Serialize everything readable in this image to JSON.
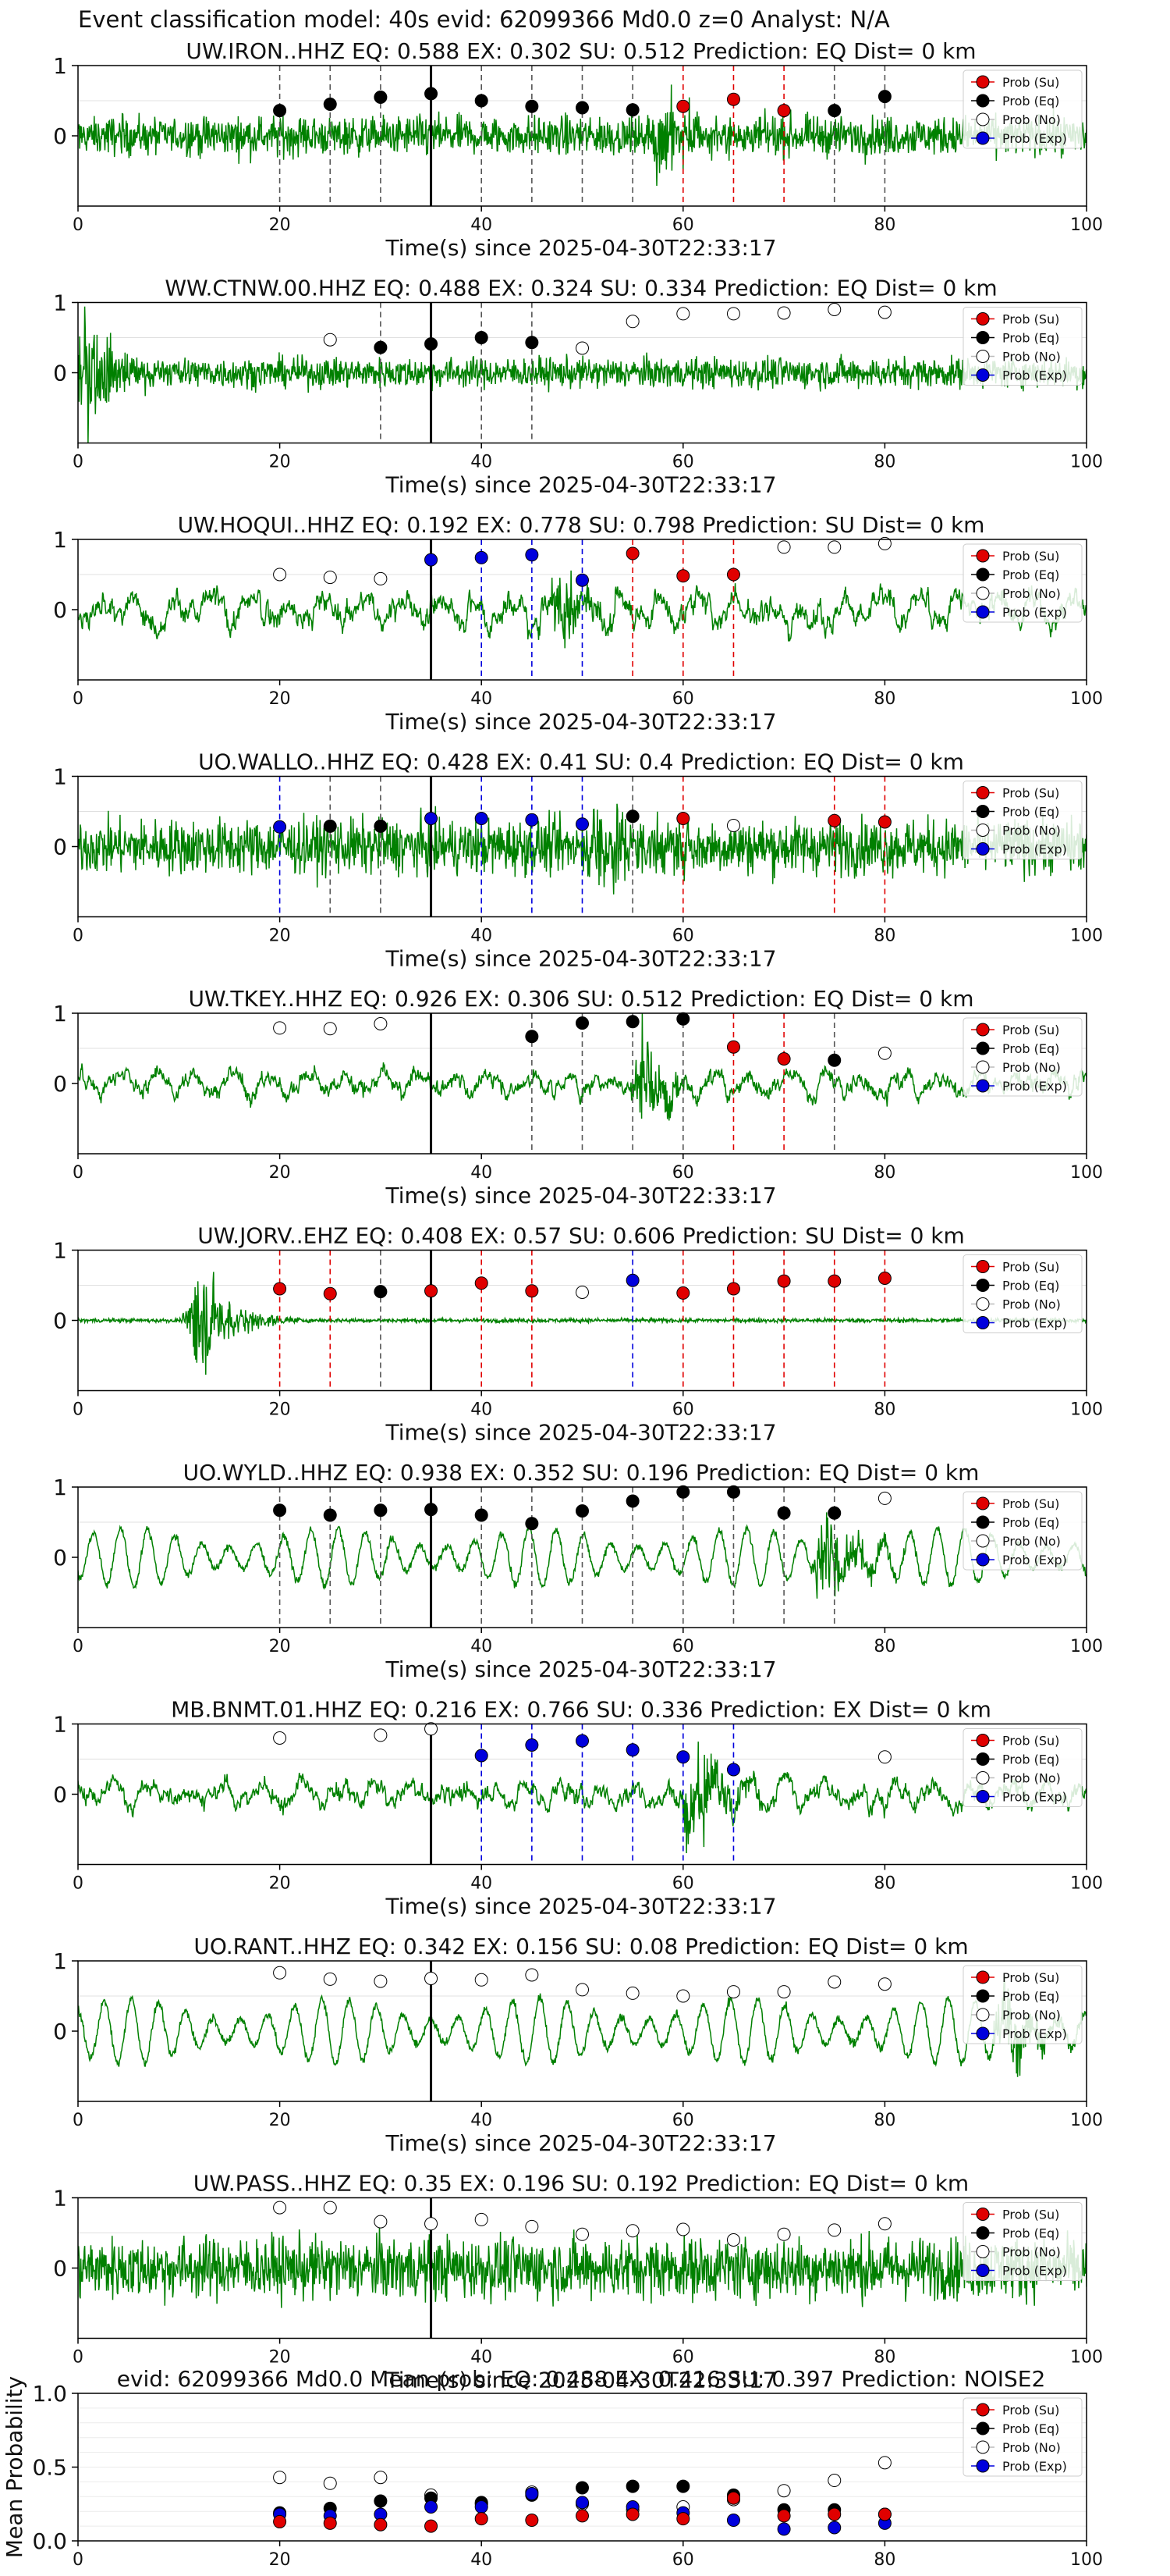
{
  "figure": {
    "suptitle": "Event classification model: 40s evid: 62099366 Md0.0 z=0 Analyst: N/A"
  },
  "colors": {
    "waveform": "#008000",
    "su": "#e00000",
    "eq": "#000000",
    "no": "#ffffff",
    "exp": "#0000dd",
    "pick_line": "#000000"
  },
  "legend_labels": [
    "Prob (Su)",
    "Prob (Eq)",
    "Prob (No)",
    "Prob (Exp)"
  ],
  "chart_data": [
    {
      "type": "line",
      "title": "UW.IRON..HHZ   EQ: 0.588  EX: 0.302  SU: 0.512   Prediction: EQ    Dist= 0 km",
      "xlabel": "Time(s) since 2025-04-30T22:33:17",
      "xlim": [
        0,
        100
      ],
      "ylim": [
        -1,
        1
      ],
      "xticks": [
        0,
        20,
        40,
        60,
        80,
        100
      ],
      "yticks": [
        0,
        1
      ],
      "pick_time": 35,
      "legend": "top-right",
      "wave": {
        "style": "noisy",
        "amp": 0.28,
        "events": [
          {
            "t": 58,
            "amp": 0.7
          }
        ]
      },
      "points": [
        {
          "x": 20,
          "y": 0.36,
          "class": "eq"
        },
        {
          "x": 25,
          "y": 0.45,
          "class": "eq"
        },
        {
          "x": 30,
          "y": 0.55,
          "class": "eq"
        },
        {
          "x": 35,
          "y": 0.6,
          "class": "eq"
        },
        {
          "x": 40,
          "y": 0.5,
          "class": "eq"
        },
        {
          "x": 45,
          "y": 0.42,
          "class": "eq"
        },
        {
          "x": 50,
          "y": 0.4,
          "class": "eq"
        },
        {
          "x": 55,
          "y": 0.37,
          "class": "eq"
        },
        {
          "x": 60,
          "y": 0.42,
          "class": "su"
        },
        {
          "x": 65,
          "y": 0.52,
          "class": "su"
        },
        {
          "x": 70,
          "y": 0.36,
          "class": "su"
        },
        {
          "x": 75,
          "y": 0.36,
          "class": "eq"
        },
        {
          "x": 80,
          "y": 0.56,
          "class": "eq"
        }
      ]
    },
    {
      "type": "line",
      "title": "WW.CTNW.00.HHZ   EQ: 0.488  EX: 0.324  SU: 0.334   Prediction: EQ    Dist= 0 km",
      "xlabel": "Time(s) since 2025-04-30T22:33:17",
      "xlim": [
        0,
        100
      ],
      "ylim": [
        -1,
        1
      ],
      "xticks": [
        0,
        20,
        40,
        60,
        80,
        100
      ],
      "yticks": [
        0,
        1
      ],
      "pick_time": 35,
      "legend": "top-right",
      "wave": {
        "style": "noisy",
        "amp": 0.22,
        "events": [
          {
            "t": 1,
            "amp": 0.9
          }
        ]
      },
      "points": [
        {
          "x": 25,
          "y": 0.47,
          "class": "no"
        },
        {
          "x": 30,
          "y": 0.36,
          "class": "eq"
        },
        {
          "x": 35,
          "y": 0.41,
          "class": "eq"
        },
        {
          "x": 40,
          "y": 0.5,
          "class": "eq"
        },
        {
          "x": 45,
          "y": 0.43,
          "class": "eq"
        },
        {
          "x": 50,
          "y": 0.35,
          "class": "no"
        },
        {
          "x": 55,
          "y": 0.73,
          "class": "no"
        },
        {
          "x": 60,
          "y": 0.84,
          "class": "no"
        },
        {
          "x": 65,
          "y": 0.84,
          "class": "no"
        },
        {
          "x": 70,
          "y": 0.85,
          "class": "no"
        },
        {
          "x": 75,
          "y": 0.9,
          "class": "no"
        },
        {
          "x": 80,
          "y": 0.86,
          "class": "no"
        }
      ]
    },
    {
      "type": "line",
      "title": "UW.HOQUI..HHZ   EQ: 0.192  EX: 0.778  SU: 0.798   Prediction: SU    Dist= 0 km",
      "xlabel": "Time(s) since 2025-04-30T22:33:17",
      "xlim": [
        0,
        100
      ],
      "ylim": [
        -1,
        1
      ],
      "xticks": [
        0,
        20,
        40,
        60,
        80,
        100
      ],
      "yticks": [
        0,
        1
      ],
      "pick_time": 35,
      "legend": "top-right",
      "wave": {
        "style": "lowfreq",
        "amp": 0.4,
        "events": [
          {
            "t": 48,
            "amp": 0.5
          }
        ]
      },
      "points": [
        {
          "x": 20,
          "y": 0.5,
          "class": "no"
        },
        {
          "x": 25,
          "y": 0.46,
          "class": "no"
        },
        {
          "x": 30,
          "y": 0.44,
          "class": "no"
        },
        {
          "x": 35,
          "y": 0.71,
          "class": "exp"
        },
        {
          "x": 40,
          "y": 0.74,
          "class": "exp"
        },
        {
          "x": 45,
          "y": 0.78,
          "class": "exp"
        },
        {
          "x": 50,
          "y": 0.42,
          "class": "exp"
        },
        {
          "x": 55,
          "y": 0.8,
          "class": "su"
        },
        {
          "x": 60,
          "y": 0.48,
          "class": "su"
        },
        {
          "x": 65,
          "y": 0.5,
          "class": "su"
        },
        {
          "x": 70,
          "y": 0.89,
          "class": "no"
        },
        {
          "x": 75,
          "y": 0.89,
          "class": "no"
        },
        {
          "x": 80,
          "y": 0.94,
          "class": "no"
        }
      ]
    },
    {
      "type": "line",
      "title": "UO.WALLO..HHZ   EQ: 0.428  EX: 0.41  SU: 0.4   Prediction: EQ    Dist= 0 km",
      "xlabel": "Time(s) since 2025-04-30T22:33:17",
      "xlim": [
        0,
        100
      ],
      "ylim": [
        -1,
        1
      ],
      "xticks": [
        0,
        20,
        40,
        60,
        80,
        100
      ],
      "yticks": [
        0,
        1
      ],
      "pick_time": 35,
      "legend": "top-right",
      "wave": {
        "style": "noisy",
        "amp": 0.4,
        "events": [
          {
            "t": 52,
            "amp": 0.8
          }
        ]
      },
      "points": [
        {
          "x": 20,
          "y": 0.28,
          "class": "exp"
        },
        {
          "x": 25,
          "y": 0.29,
          "class": "eq"
        },
        {
          "x": 30,
          "y": 0.29,
          "class": "eq"
        },
        {
          "x": 35,
          "y": 0.4,
          "class": "exp"
        },
        {
          "x": 40,
          "y": 0.4,
          "class": "exp"
        },
        {
          "x": 45,
          "y": 0.38,
          "class": "exp"
        },
        {
          "x": 50,
          "y": 0.32,
          "class": "exp"
        },
        {
          "x": 55,
          "y": 0.43,
          "class": "eq"
        },
        {
          "x": 60,
          "y": 0.4,
          "class": "su"
        },
        {
          "x": 65,
          "y": 0.3,
          "class": "no"
        },
        {
          "x": 75,
          "y": 0.37,
          "class": "su"
        },
        {
          "x": 80,
          "y": 0.35,
          "class": "su"
        }
      ]
    },
    {
      "type": "line",
      "title": "UW.TKEY..HHZ   EQ: 0.926  EX: 0.306  SU: 0.512   Prediction: EQ    Dist= 0 km",
      "xlabel": "Time(s) since 2025-04-30T22:33:17",
      "xlim": [
        0,
        100
      ],
      "ylim": [
        -1,
        1
      ],
      "xticks": [
        0,
        20,
        40,
        60,
        80,
        100
      ],
      "yticks": [
        0,
        1
      ],
      "pick_time": 35,
      "legend": "top-right",
      "wave": {
        "style": "lowfreq",
        "amp": 0.28,
        "events": [
          {
            "t": 56,
            "amp": 0.6
          }
        ]
      },
      "points": [
        {
          "x": 20,
          "y": 0.79,
          "class": "no"
        },
        {
          "x": 25,
          "y": 0.78,
          "class": "no"
        },
        {
          "x": 30,
          "y": 0.85,
          "class": "no"
        },
        {
          "x": 45,
          "y": 0.67,
          "class": "eq"
        },
        {
          "x": 50,
          "y": 0.86,
          "class": "eq"
        },
        {
          "x": 55,
          "y": 0.88,
          "class": "eq"
        },
        {
          "x": 60,
          "y": 0.92,
          "class": "eq"
        },
        {
          "x": 65,
          "y": 0.52,
          "class": "su"
        },
        {
          "x": 70,
          "y": 0.35,
          "class": "su"
        },
        {
          "x": 75,
          "y": 0.33,
          "class": "eq"
        },
        {
          "x": 80,
          "y": 0.43,
          "class": "no"
        }
      ]
    },
    {
      "type": "line",
      "title": "UW.JORV..EHZ   EQ: 0.408  EX: 0.57  SU: 0.606   Prediction: SU    Dist= 0 km",
      "xlabel": "Time(s) since 2025-04-30T22:33:17",
      "xlim": [
        0,
        100
      ],
      "ylim": [
        -1,
        1
      ],
      "xticks": [
        0,
        20,
        40,
        60,
        80,
        100
      ],
      "yticks": [
        0,
        1
      ],
      "pick_time": 35,
      "legend": "top-right",
      "wave": {
        "style": "quiet",
        "amp": 0.03,
        "events": [
          {
            "t": 12,
            "amp": 0.9
          }
        ]
      },
      "points": [
        {
          "x": 20,
          "y": 0.45,
          "class": "su"
        },
        {
          "x": 25,
          "y": 0.38,
          "class": "su"
        },
        {
          "x": 30,
          "y": 0.41,
          "class": "eq"
        },
        {
          "x": 35,
          "y": 0.42,
          "class": "su"
        },
        {
          "x": 40,
          "y": 0.53,
          "class": "su"
        },
        {
          "x": 45,
          "y": 0.42,
          "class": "su"
        },
        {
          "x": 50,
          "y": 0.4,
          "class": "no"
        },
        {
          "x": 55,
          "y": 0.57,
          "class": "exp"
        },
        {
          "x": 60,
          "y": 0.39,
          "class": "su"
        },
        {
          "x": 65,
          "y": 0.45,
          "class": "su"
        },
        {
          "x": 70,
          "y": 0.56,
          "class": "su"
        },
        {
          "x": 75,
          "y": 0.56,
          "class": "su"
        },
        {
          "x": 80,
          "y": 0.6,
          "class": "su"
        }
      ]
    },
    {
      "type": "line",
      "title": "UO.WYLD..HHZ   EQ: 0.938  EX: 0.352  SU: 0.196   Prediction: EQ    Dist= 0 km",
      "xlabel": "Time(s) since 2025-04-30T22:33:17",
      "xlim": [
        0,
        100
      ],
      "ylim": [
        -1,
        1
      ],
      "xticks": [
        0,
        20,
        40,
        60,
        80,
        100
      ],
      "yticks": [
        0,
        1
      ],
      "pick_time": 35,
      "legend": "top-right",
      "wave": {
        "style": "wavy",
        "amp": 0.38,
        "events": [
          {
            "t": 74,
            "amp": 0.8
          }
        ]
      },
      "points": [
        {
          "x": 20,
          "y": 0.67,
          "class": "eq"
        },
        {
          "x": 25,
          "y": 0.6,
          "class": "eq"
        },
        {
          "x": 30,
          "y": 0.67,
          "class": "eq"
        },
        {
          "x": 35,
          "y": 0.68,
          "class": "eq"
        },
        {
          "x": 40,
          "y": 0.6,
          "class": "eq"
        },
        {
          "x": 45,
          "y": 0.48,
          "class": "eq"
        },
        {
          "x": 50,
          "y": 0.66,
          "class": "eq"
        },
        {
          "x": 55,
          "y": 0.8,
          "class": "eq"
        },
        {
          "x": 60,
          "y": 0.93,
          "class": "eq"
        },
        {
          "x": 65,
          "y": 0.93,
          "class": "eq"
        },
        {
          "x": 70,
          "y": 0.63,
          "class": "eq"
        },
        {
          "x": 75,
          "y": 0.63,
          "class": "eq"
        },
        {
          "x": 80,
          "y": 0.84,
          "class": "no"
        }
      ]
    },
    {
      "type": "line",
      "title": "MB.BNMT.01.HHZ   EQ: 0.216  EX: 0.766  SU: 0.336   Prediction: EX    Dist= 0 km",
      "xlabel": "Time(s) since 2025-04-30T22:33:17",
      "xlim": [
        0,
        100
      ],
      "ylim": [
        -1,
        1
      ],
      "xticks": [
        0,
        20,
        40,
        60,
        80,
        100
      ],
      "yticks": [
        0,
        1
      ],
      "pick_time": 35,
      "legend": "top-right",
      "wave": {
        "style": "lowfreq",
        "amp": 0.3,
        "events": [
          {
            "t": 61,
            "amp": 0.85
          }
        ]
      },
      "points": [
        {
          "x": 20,
          "y": 0.8,
          "class": "no"
        },
        {
          "x": 30,
          "y": 0.84,
          "class": "no"
        },
        {
          "x": 35,
          "y": 0.93,
          "class": "no"
        },
        {
          "x": 40,
          "y": 0.55,
          "class": "exp"
        },
        {
          "x": 45,
          "y": 0.7,
          "class": "exp"
        },
        {
          "x": 50,
          "y": 0.76,
          "class": "exp"
        },
        {
          "x": 55,
          "y": 0.63,
          "class": "exp"
        },
        {
          "x": 60,
          "y": 0.53,
          "class": "exp"
        },
        {
          "x": 65,
          "y": 0.35,
          "class": "exp"
        },
        {
          "x": 80,
          "y": 0.53,
          "class": "no"
        }
      ]
    },
    {
      "type": "line",
      "title": "UO.RANT..HHZ   EQ: 0.342  EX: 0.156  SU: 0.08   Prediction: EQ    Dist= 0 km",
      "xlabel": "Time(s) since 2025-04-30T22:33:17",
      "xlim": [
        0,
        100
      ],
      "ylim": [
        -1,
        1
      ],
      "xticks": [
        0,
        20,
        40,
        60,
        80,
        100
      ],
      "yticks": [
        0,
        1
      ],
      "pick_time": 35,
      "legend": "top-right",
      "wave": {
        "style": "wavy",
        "amp": 0.42,
        "events": [
          {
            "t": 92,
            "amp": 0.7
          }
        ]
      },
      "points": [
        {
          "x": 20,
          "y": 0.83,
          "class": "no"
        },
        {
          "x": 25,
          "y": 0.74,
          "class": "no"
        },
        {
          "x": 30,
          "y": 0.71,
          "class": "no"
        },
        {
          "x": 35,
          "y": 0.75,
          "class": "no"
        },
        {
          "x": 40,
          "y": 0.73,
          "class": "no"
        },
        {
          "x": 45,
          "y": 0.8,
          "class": "no"
        },
        {
          "x": 50,
          "y": 0.59,
          "class": "no"
        },
        {
          "x": 55,
          "y": 0.54,
          "class": "no"
        },
        {
          "x": 60,
          "y": 0.5,
          "class": "no"
        },
        {
          "x": 65,
          "y": 0.56,
          "class": "no"
        },
        {
          "x": 70,
          "y": 0.56,
          "class": "no"
        },
        {
          "x": 75,
          "y": 0.7,
          "class": "no"
        },
        {
          "x": 80,
          "y": 0.67,
          "class": "no"
        }
      ]
    },
    {
      "type": "line",
      "title": "UW.PASS..HHZ   EQ: 0.35  EX: 0.196  SU: 0.192   Prediction: EQ    Dist= 0 km",
      "xlabel": "Time(s) since 2025-04-30T22:33:17",
      "xlim": [
        0,
        100
      ],
      "ylim": [
        -1,
        1
      ],
      "xticks": [
        0,
        20,
        40,
        60,
        80,
        100
      ],
      "yticks": [
        0,
        1
      ],
      "pick_time": 35,
      "legend": "top-right",
      "wave": {
        "style": "noisy",
        "amp": 0.45,
        "events": []
      },
      "points": [
        {
          "x": 20,
          "y": 0.86,
          "class": "no"
        },
        {
          "x": 25,
          "y": 0.86,
          "class": "no"
        },
        {
          "x": 30,
          "y": 0.66,
          "class": "no"
        },
        {
          "x": 35,
          "y": 0.63,
          "class": "no"
        },
        {
          "x": 40,
          "y": 0.69,
          "class": "no"
        },
        {
          "x": 45,
          "y": 0.59,
          "class": "no"
        },
        {
          "x": 50,
          "y": 0.48,
          "class": "no"
        },
        {
          "x": 55,
          "y": 0.53,
          "class": "no"
        },
        {
          "x": 60,
          "y": 0.55,
          "class": "no"
        },
        {
          "x": 65,
          "y": 0.4,
          "class": "no"
        },
        {
          "x": 70,
          "y": 0.48,
          "class": "no"
        },
        {
          "x": 75,
          "y": 0.54,
          "class": "no"
        },
        {
          "x": 80,
          "y": 0.63,
          "class": "no"
        }
      ]
    },
    {
      "type": "scatter",
      "title": "evid: 62099366  Md0.0   Mean prob:   EQ: 0.488  EX: 0.416  SU: 0.397   Prediction: NOISE2",
      "xlabel": "",
      "ylabel": "Mean Probability",
      "xlim": [
        0,
        100
      ],
      "ylim": [
        0,
        1
      ],
      "xticks": [
        0,
        20,
        40,
        60,
        80,
        100
      ],
      "yticks": [
        0.0,
        0.5,
        1.0
      ],
      "ytick_labels": [
        "0.0",
        "0.5",
        "1.0"
      ],
      "grid": true,
      "legend": "top-right",
      "x": [
        20,
        25,
        30,
        35,
        40,
        45,
        50,
        55,
        60,
        65,
        70,
        75,
        80
      ],
      "series": [
        {
          "class": "no",
          "values": [
            0.43,
            0.39,
            0.43,
            0.31,
            0.25,
            0.33,
            0.25,
            0.21,
            0.23,
            0.28,
            0.34,
            0.41,
            0.53
          ]
        },
        {
          "class": "eq",
          "values": [
            0.19,
            0.22,
            0.27,
            0.29,
            0.26,
            0.31,
            0.36,
            0.37,
            0.37,
            0.31,
            0.21,
            0.21,
            0.18
          ]
        },
        {
          "class": "exp",
          "values": [
            0.18,
            0.17,
            0.18,
            0.23,
            0.23,
            0.32,
            0.26,
            0.23,
            0.19,
            0.14,
            0.08,
            0.09,
            0.12
          ]
        },
        {
          "class": "su",
          "values": [
            0.13,
            0.12,
            0.11,
            0.1,
            0.15,
            0.14,
            0.17,
            0.18,
            0.15,
            0.29,
            0.17,
            0.18,
            0.18
          ]
        }
      ]
    }
  ]
}
